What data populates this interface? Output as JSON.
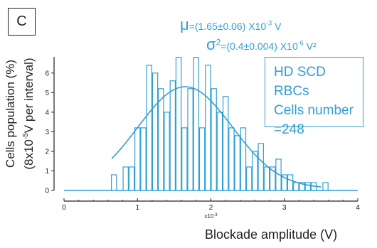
{
  "panel_label": "C",
  "annotations": {
    "mu_symbol": "μ",
    "mu_text": "=(1.65±0.06) X10",
    "mu_exp": "-3",
    "mu_unit": " V",
    "sigma_symbol": "σ",
    "sigma_sup": "2",
    "sigma_text": "=(0.4±0.004) X10",
    "sigma_exp": "-6",
    "sigma_unit": " V²"
  },
  "info_box": {
    "line1": "HD SCD RBCs",
    "line2": "Cells number",
    "line3": "=248"
  },
  "colors": {
    "accent": "#2f9fd4",
    "axis": "#222222"
  },
  "chart_data": {
    "type": "bar",
    "title": "",
    "xlabel": "Blockade amplitude (V)",
    "ylabel_line1": "Cells population (%)",
    "ylabel_line2_pre": "(8x10",
    "ylabel_line2_exp": "-5",
    "ylabel_line2_post": "V per interval)",
    "x_multiplier": "x10",
    "x_multiplier_exp": "-3",
    "xlim": [
      0,
      4
    ],
    "ylim": [
      0,
      6.9
    ],
    "xticks": [
      0,
      1,
      2,
      3,
      4
    ],
    "yticks": [
      0,
      1,
      2,
      3,
      4,
      5,
      6
    ],
    "bin_width": 0.08,
    "bins": [
      {
        "x": 0.64,
        "y": 0.8
      },
      {
        "x": 0.8,
        "y": 1.2
      },
      {
        "x": 0.88,
        "y": 1.2
      },
      {
        "x": 0.96,
        "y": 3.2
      },
      {
        "x": 1.04,
        "y": 3.2
      },
      {
        "x": 1.12,
        "y": 6.4
      },
      {
        "x": 1.2,
        "y": 6.0
      },
      {
        "x": 1.28,
        "y": 5.2
      },
      {
        "x": 1.36,
        "y": 4.0
      },
      {
        "x": 1.44,
        "y": 5.6
      },
      {
        "x": 1.52,
        "y": 6.8
      },
      {
        "x": 1.6,
        "y": 3.2
      },
      {
        "x": 1.68,
        "y": 5.2
      },
      {
        "x": 1.76,
        "y": 6.8
      },
      {
        "x": 1.84,
        "y": 3.2
      },
      {
        "x": 1.92,
        "y": 6.4
      },
      {
        "x": 2.0,
        "y": 5.2
      },
      {
        "x": 2.08,
        "y": 4.0
      },
      {
        "x": 2.16,
        "y": 4.8
      },
      {
        "x": 2.24,
        "y": 3.2
      },
      {
        "x": 2.32,
        "y": 2.8
      },
      {
        "x": 2.4,
        "y": 3.2
      },
      {
        "x": 2.48,
        "y": 1.2
      },
      {
        "x": 2.56,
        "y": 2.0
      },
      {
        "x": 2.64,
        "y": 2.4
      },
      {
        "x": 2.72,
        "y": 1.2
      },
      {
        "x": 2.8,
        "y": 1.2
      },
      {
        "x": 2.88,
        "y": 1.6
      },
      {
        "x": 2.96,
        "y": 0.8
      },
      {
        "x": 3.04,
        "y": 0.8
      },
      {
        "x": 3.12,
        "y": 0.4
      },
      {
        "x": 3.2,
        "y": 0.4
      },
      {
        "x": 3.28,
        "y": 0.4
      },
      {
        "x": 3.36,
        "y": 0.4
      },
      {
        "x": 3.52,
        "y": 0.4
      }
    ],
    "fit_curve": {
      "type": "gaussian",
      "mean": 1.65,
      "sigma": 0.64,
      "peak": 5.3,
      "offset": 0.1,
      "x_range": [
        0.65,
        3.5
      ]
    }
  }
}
